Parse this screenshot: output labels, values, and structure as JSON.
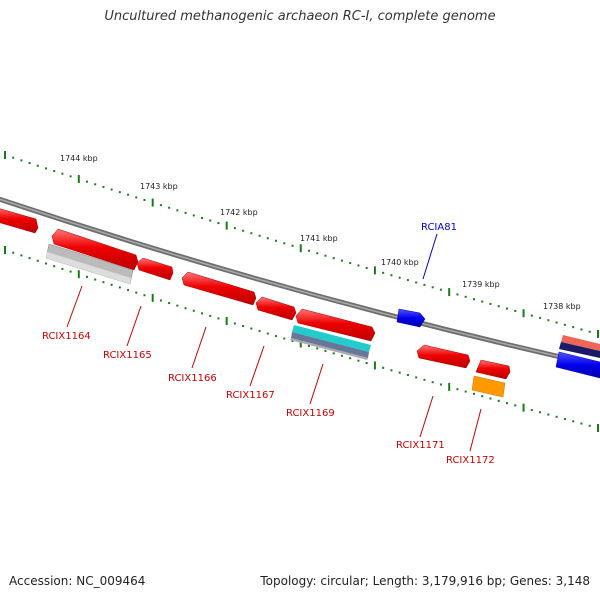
{
  "title": "Uncultured methanogenic archaeon RC-I, complete genome",
  "accession": "Accession: NC_009464",
  "topology": "Topology: circular; Length: 3,179,916 bp; Genes: 3,148",
  "colors": {
    "backbone": "#777777",
    "ticks": "#1a7a1a",
    "gene_red": "#ee0000",
    "gene_blue": "#0000ee",
    "label_red": "#cc0000",
    "label_blue": "#0000cc",
    "orange": "#ff9900",
    "cyan": "#22cccc",
    "gray": "#aaaaaa"
  },
  "scale_labels": [
    "1744 kbp",
    "1743 kbp",
    "1742 kbp",
    "1741 kbp",
    "1740 kbp",
    "1739 kbp",
    "1738 kbp"
  ],
  "gene_labels": [
    {
      "text": "RCIX1164",
      "color": "#cc0000"
    },
    {
      "text": "RCIX1165",
      "color": "#cc0000"
    },
    {
      "text": "RCIX1166",
      "color": "#cc0000"
    },
    {
      "text": "RCIX1167",
      "color": "#cc0000"
    },
    {
      "text": "RCIX1169",
      "color": "#cc0000"
    },
    {
      "text": "RCIX1171",
      "color": "#cc0000"
    },
    {
      "text": "RCIX1172",
      "color": "#cc0000"
    },
    {
      "text": "RCIA81",
      "color": "#0000cc"
    }
  ]
}
